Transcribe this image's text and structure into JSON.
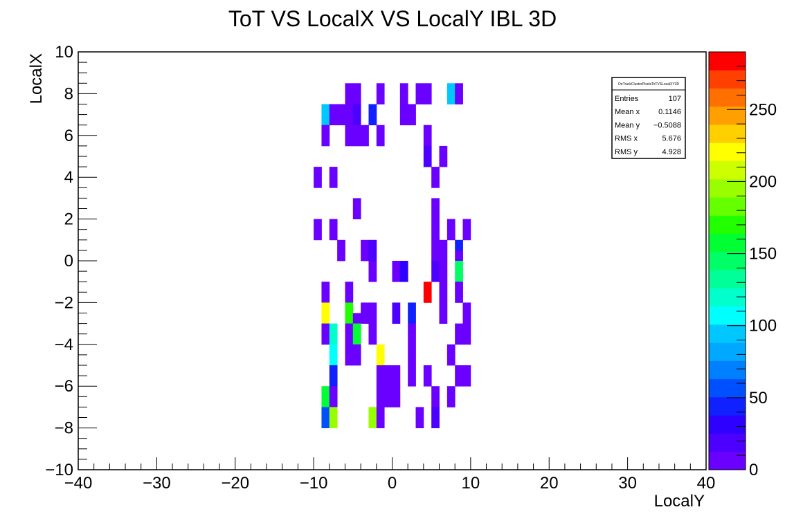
{
  "chart_data": {
    "type": "heatmap",
    "title": "ToT VS LocalX VS LocalY IBL 3D",
    "xlabel": "LocalY",
    "ylabel": "LocalX",
    "xlim": [
      -40,
      40
    ],
    "ylim": [
      -10,
      10
    ],
    "bin_size": [
      1,
      0.5
    ],
    "x_ticks": [
      -40,
      -30,
      -20,
      -10,
      0,
      10,
      20,
      30,
      40
    ],
    "y_ticks": [
      -10,
      -8,
      -6,
      -4,
      -2,
      0,
      2,
      4,
      6,
      8,
      10
    ],
    "x_tick_labels": [
      "−40",
      "−30",
      "−20",
      "−10",
      "0",
      "10",
      "20",
      "30",
      "40"
    ],
    "y_tick_labels": [
      "−10",
      "−8",
      "−6",
      "−4",
      "−2",
      "0",
      "2",
      "4",
      "6",
      "8",
      "10"
    ],
    "z_range": [
      0,
      290
    ],
    "z_ticks": [
      0,
      50,
      100,
      150,
      200,
      250
    ],
    "z_tick_labels": [
      "0",
      "50",
      "100",
      "150",
      "200",
      "250"
    ],
    "palette": [
      "#6a00ff",
      "#4c00ff",
      "#2e00ff",
      "#1020ff",
      "#0050ff",
      "#0080ff",
      "#00a8ff",
      "#00c8ff",
      "#00ffff",
      "#00ffcc",
      "#00ff99",
      "#00ff66",
      "#00ff33",
      "#22ff00",
      "#66ff00",
      "#99ff00",
      "#ccff00",
      "#ffff00",
      "#ffd000",
      "#ffa000",
      "#ff7000",
      "#ff4000",
      "#ff0000"
    ],
    "bins": [
      [
        -6,
        7.5,
        5
      ],
      [
        -5,
        7.5,
        5
      ],
      [
        -2,
        7.5,
        5
      ],
      [
        1,
        7.5,
        5
      ],
      [
        3,
        7.5,
        5
      ],
      [
        4,
        7.5,
        5
      ],
      [
        7,
        7.5,
        100
      ],
      [
        8,
        7.5,
        5
      ],
      [
        -6,
        8,
        5
      ],
      [
        -5,
        8,
        5
      ],
      [
        -2,
        8,
        5
      ],
      [
        1,
        8,
        5
      ],
      [
        3,
        8,
        5
      ],
      [
        4,
        8,
        5
      ],
      [
        7,
        8,
        100
      ],
      [
        8,
        8,
        5
      ],
      [
        -9,
        6.5,
        95
      ],
      [
        -8,
        6.5,
        5
      ],
      [
        -7,
        6.5,
        5
      ],
      [
        -6,
        6.5,
        5
      ],
      [
        -5,
        6.5,
        15
      ],
      [
        -3,
        6.5,
        40
      ],
      [
        1,
        6.5,
        5
      ],
      [
        2,
        6.5,
        5
      ],
      [
        -9,
        7,
        95
      ],
      [
        -8,
        7,
        5
      ],
      [
        -7,
        7,
        5
      ],
      [
        -6,
        7,
        5
      ],
      [
        -5,
        7,
        15
      ],
      [
        -3,
        7,
        40
      ],
      [
        1,
        7,
        5
      ],
      [
        2,
        7,
        5
      ],
      [
        -9,
        5.5,
        5
      ],
      [
        -6,
        5.5,
        5
      ],
      [
        -5,
        5.5,
        5
      ],
      [
        -4,
        5.5,
        5
      ],
      [
        -2,
        5.5,
        5
      ],
      [
        4,
        5.5,
        5
      ],
      [
        -9,
        6,
        5
      ],
      [
        -6,
        6,
        5
      ],
      [
        -5,
        6,
        5
      ],
      [
        -4,
        6,
        5
      ],
      [
        -2,
        6,
        5
      ],
      [
        4,
        6,
        5
      ],
      [
        4,
        4.5,
        20
      ],
      [
        6,
        4.5,
        5
      ],
      [
        4,
        5,
        20
      ],
      [
        6,
        5,
        5
      ],
      [
        -10,
        3.5,
        5
      ],
      [
        -8,
        3.5,
        5
      ],
      [
        5,
        3.5,
        5
      ],
      [
        -10,
        4,
        5
      ],
      [
        -8,
        4,
        5
      ],
      [
        5,
        4,
        5
      ],
      [
        -5,
        2,
        5
      ],
      [
        5,
        2,
        5
      ],
      [
        -5,
        2.5,
        5
      ],
      [
        5,
        2.5,
        5
      ],
      [
        -10,
        1.5,
        5
      ],
      [
        -8,
        1.5,
        5
      ],
      [
        5,
        1.5,
        5
      ],
      [
        7,
        1.5,
        5
      ],
      [
        9,
        1.5,
        5
      ],
      [
        -10,
        1,
        5
      ],
      [
        -8,
        1,
        5
      ],
      [
        5,
        1,
        5
      ],
      [
        7,
        1,
        5
      ],
      [
        9,
        1,
        5
      ],
      [
        -7,
        0,
        5
      ],
      [
        -4,
        0,
        5
      ],
      [
        -3,
        0,
        15
      ],
      [
        5,
        0,
        5
      ],
      [
        6,
        0,
        5
      ],
      [
        8,
        0,
        5
      ],
      [
        -7,
        0.5,
        5
      ],
      [
        -4,
        0.5,
        5
      ],
      [
        -3,
        0.5,
        15
      ],
      [
        5,
        0.5,
        5
      ],
      [
        6,
        0.5,
        5
      ],
      [
        8,
        0.5,
        40
      ],
      [
        -3,
        -1,
        5
      ],
      [
        0,
        -1,
        5
      ],
      [
        1,
        -1,
        30
      ],
      [
        5,
        -1,
        20
      ],
      [
        6,
        -1,
        5
      ],
      [
        8,
        -1,
        150
      ],
      [
        -3,
        -0.5,
        5
      ],
      [
        0,
        -0.5,
        5
      ],
      [
        1,
        -0.5,
        30
      ],
      [
        5,
        -0.5,
        20
      ],
      [
        6,
        -0.5,
        5
      ],
      [
        8,
        -0.5,
        150
      ],
      [
        -9,
        -2,
        5
      ],
      [
        -6,
        -2,
        5
      ],
      [
        4,
        -2,
        290
      ],
      [
        6,
        -2,
        5
      ],
      [
        8,
        -2,
        5
      ],
      [
        -9,
        -1.5,
        5
      ],
      [
        -6,
        -1.5,
        5
      ],
      [
        4,
        -1.5,
        290
      ],
      [
        6,
        -1.5,
        5
      ],
      [
        8,
        -1.5,
        5
      ],
      [
        -9,
        -3,
        215
      ],
      [
        -6,
        -3,
        170
      ],
      [
        -5,
        -3,
        5
      ],
      [
        -4,
        -3,
        5
      ],
      [
        -3,
        -3,
        5
      ],
      [
        0,
        -3,
        15
      ],
      [
        2,
        -3,
        40
      ],
      [
        6,
        -3,
        5
      ],
      [
        9,
        -3,
        5
      ],
      [
        -9,
        -2.5,
        215
      ],
      [
        -6,
        -2.5,
        170
      ],
      [
        -4,
        -2.5,
        5
      ],
      [
        -3,
        -2.5,
        5
      ],
      [
        0,
        -2.5,
        15
      ],
      [
        2,
        -2.5,
        40
      ],
      [
        6,
        -2.5,
        5
      ],
      [
        9,
        -2.5,
        5
      ],
      [
        -9,
        -4,
        5
      ],
      [
        -8,
        -4,
        120
      ],
      [
        -6,
        -4,
        5
      ],
      [
        -5,
        -4,
        160
      ],
      [
        -3,
        -4,
        5
      ],
      [
        2,
        -4,
        5
      ],
      [
        8,
        -4,
        5
      ],
      [
        9,
        -4,
        5
      ],
      [
        -9,
        -3.5,
        5
      ],
      [
        -8,
        -3.5,
        120
      ],
      [
        -6,
        -3.5,
        5
      ],
      [
        -5,
        -3.5,
        160
      ],
      [
        -3,
        -3.5,
        5
      ],
      [
        2,
        -3.5,
        5
      ],
      [
        8,
        -3.5,
        5
      ],
      [
        9,
        -3.5,
        5
      ],
      [
        -8,
        -5,
        110
      ],
      [
        -6,
        -5,
        5
      ],
      [
        -5,
        -5,
        5
      ],
      [
        -2,
        -5,
        215
      ],
      [
        2,
        -5,
        5
      ],
      [
        7,
        -5,
        5
      ],
      [
        -8,
        -4.5,
        110
      ],
      [
        -6,
        -4.5,
        5
      ],
      [
        -5,
        -4.5,
        5
      ],
      [
        -2,
        -4.5,
        215
      ],
      [
        2,
        -4.5,
        5
      ],
      [
        7,
        -4.5,
        5
      ],
      [
        -8,
        -6,
        40
      ],
      [
        -2,
        -6,
        5
      ],
      [
        -1,
        -6,
        5
      ],
      [
        0,
        -6,
        5
      ],
      [
        2,
        -6,
        5
      ],
      [
        4,
        -6,
        5
      ],
      [
        8,
        -6,
        5
      ],
      [
        9,
        -6,
        5
      ],
      [
        -8,
        -5.5,
        40
      ],
      [
        -2,
        -5.5,
        5
      ],
      [
        -1,
        -5.5,
        5
      ],
      [
        0,
        -5.5,
        5
      ],
      [
        2,
        -5.5,
        5
      ],
      [
        4,
        -5.5,
        5
      ],
      [
        8,
        -5.5,
        5
      ],
      [
        9,
        -5.5,
        5
      ],
      [
        -9,
        -7,
        160
      ],
      [
        -8,
        -7,
        5
      ],
      [
        -2,
        -7,
        5
      ],
      [
        -1,
        -7,
        5
      ],
      [
        0,
        -7,
        5
      ],
      [
        5,
        -7,
        5
      ],
      [
        7,
        -7,
        5
      ],
      [
        -9,
        -6.5,
        160
      ],
      [
        -8,
        -6.5,
        5
      ],
      [
        -2,
        -6.5,
        5
      ],
      [
        -1,
        -6.5,
        5
      ],
      [
        0,
        -6.5,
        5
      ],
      [
        5,
        -6.5,
        5
      ],
      [
        7,
        -6.5,
        5
      ],
      [
        -9,
        -8,
        60
      ],
      [
        -8,
        -8,
        190
      ],
      [
        -3,
        -8,
        190
      ],
      [
        -2,
        -8,
        5
      ],
      [
        3,
        -8,
        5
      ],
      [
        5,
        -8,
        20
      ],
      [
        -9,
        -7.5,
        60
      ],
      [
        -8,
        -7.5,
        190
      ],
      [
        -3,
        -7.5,
        190
      ],
      [
        -2,
        -7.5,
        5
      ],
      [
        3,
        -7.5,
        5
      ],
      [
        5,
        -7.5,
        20
      ]
    ]
  },
  "stats_box": {
    "title": "OnTrackClusterPixelsToTVSLocalXY3D",
    "rows": [
      {
        "label": "Entries",
        "value": "107"
      },
      {
        "label": "Mean x",
        "value": "0.1146"
      },
      {
        "label": "Mean y",
        "value": "−0.5088"
      },
      {
        "label": "RMS x",
        "value": "5.676"
      },
      {
        "label": "RMS y",
        "value": "4.928"
      }
    ]
  }
}
